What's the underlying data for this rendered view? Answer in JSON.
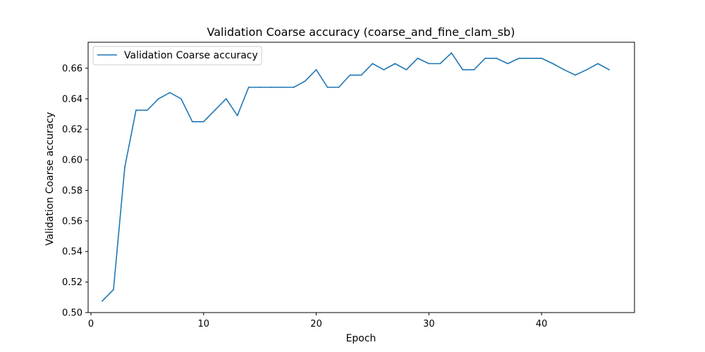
{
  "chart_data": {
    "type": "line",
    "title": "Validation Coarse accuracy (coarse_and_fine_clam_sb)",
    "xlabel": "Epoch",
    "ylabel": "Validation Coarse accuracy",
    "xlim": [
      -0.25,
      48.25
    ],
    "ylim": [
      0.5,
      0.677
    ],
    "xticks": [
      0,
      10,
      20,
      30,
      40
    ],
    "xtick_labels": [
      "0",
      "10",
      "20",
      "30",
      "40"
    ],
    "yticks": [
      0.5,
      0.52,
      0.54,
      0.56,
      0.58,
      0.6,
      0.62,
      0.64,
      0.66
    ],
    "ytick_labels": [
      "0.50",
      "0.52",
      "0.54",
      "0.56",
      "0.58",
      "0.60",
      "0.62",
      "0.64",
      "0.66"
    ],
    "grid": false,
    "legend_position": "top-left",
    "series": [
      {
        "name": "Validation Coarse accuracy",
        "color": "#1f77b4",
        "x": [
          1,
          2,
          3,
          4,
          5,
          6,
          7,
          8,
          9,
          10,
          11,
          12,
          13,
          14,
          15,
          16,
          17,
          18,
          19,
          20,
          21,
          22,
          23,
          24,
          25,
          26,
          27,
          28,
          29,
          30,
          31,
          32,
          33,
          34,
          35,
          36,
          37,
          38,
          39,
          40,
          41,
          42,
          43,
          44,
          45,
          46
        ],
        "y": [
          0.5075,
          0.515,
          0.595,
          0.6325,
          0.6325,
          0.64,
          0.644,
          0.64,
          0.625,
          0.625,
          0.6325,
          0.64,
          0.629,
          0.6475,
          0.6475,
          0.6475,
          0.6475,
          0.6475,
          0.6515,
          0.659,
          0.6475,
          0.6475,
          0.6555,
          0.6555,
          0.663,
          0.659,
          0.663,
          0.659,
          0.6665,
          0.663,
          0.663,
          0.67,
          0.659,
          0.659,
          0.6665,
          0.6665,
          0.663,
          0.6665,
          0.6665,
          0.6665,
          0.663,
          0.659,
          0.6555,
          0.659,
          0.663,
          0.659
        ]
      }
    ]
  }
}
